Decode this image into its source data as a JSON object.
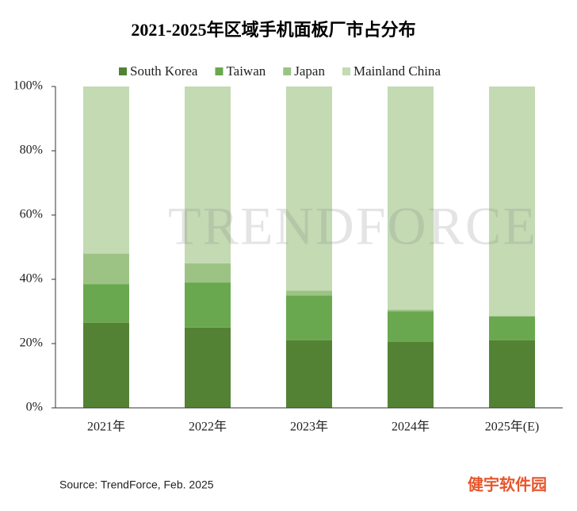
{
  "chart_data": {
    "type": "stacked_bar",
    "title": "2021-2025年区域手机面板厂市占分布",
    "categories": [
      "2021年",
      "2022年",
      "2023年",
      "2024年",
      "2025年(E)"
    ],
    "series": [
      {
        "name": "South Korea",
        "color": "#548235",
        "values": [
          26.5,
          25,
          21,
          20.5,
          21
        ]
      },
      {
        "name": "Taiwan",
        "color": "#6aa84f",
        "values": [
          12,
          14,
          14,
          9.5,
          7.5
        ]
      },
      {
        "name": "Japan",
        "color": "#9cc384",
        "values": [
          9.5,
          6,
          1.5,
          0.5,
          0
        ]
      },
      {
        "name": "Mainland China",
        "color": "#c3dab3",
        "values": [
          52,
          55,
          63.5,
          69.5,
          71.5
        ]
      }
    ],
    "ylim": [
      0,
      100
    ],
    "yticks": [
      {
        "value": 0,
        "label": "0%"
      },
      {
        "value": 20,
        "label": "20%"
      },
      {
        "value": 40,
        "label": "40%"
      },
      {
        "value": 60,
        "label": "60%"
      },
      {
        "value": 80,
        "label": "80%"
      },
      {
        "value": 100,
        "label": "100%"
      }
    ],
    "legend_position": "top"
  },
  "watermark": "TRENDFORCE",
  "source": "Source: TrendForce, Feb. 2025",
  "brand": "健宇软件园"
}
